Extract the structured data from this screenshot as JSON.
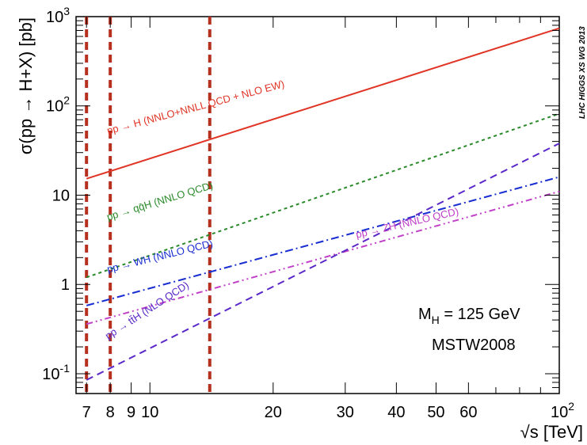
{
  "chart_data": {
    "type": "line",
    "x_scale": "log",
    "y_scale": "log",
    "xlim": [
      6.6,
      100
    ],
    "ylim": [
      0.06,
      1000
    ],
    "xlabel": "√s [TeV]",
    "ylabel": "σ(pp → H+X) [pb]",
    "x_ticks": [
      {
        "value": 7,
        "label": "7"
      },
      {
        "value": 8,
        "label": "8"
      },
      {
        "value": 9,
        "label": "9"
      },
      {
        "value": 10,
        "label": "10"
      },
      {
        "value": 20,
        "label": "20"
      },
      {
        "value": 30,
        "label": "30"
      },
      {
        "value": 40,
        "label": "40"
      },
      {
        "value": 50,
        "label": "50"
      },
      {
        "value": 60,
        "label": "60"
      },
      {
        "value": 100,
        "label": "10",
        "sup": "2"
      }
    ],
    "y_ticks": [
      {
        "value": 0.1,
        "label": "10",
        "sup": "-1"
      },
      {
        "value": 1,
        "label": "1"
      },
      {
        "value": 10,
        "label": "10"
      },
      {
        "value": 100,
        "label": "10",
        "sup": "2"
      },
      {
        "value": 1000,
        "label": "10",
        "sup": "3"
      }
    ],
    "vertical_lines": [
      7,
      8,
      14
    ],
    "vertical_line_color": "#b5301f",
    "series": [
      {
        "name": "pp → H (NNLO+NNLL QCD + NLO EW)",
        "color": "#e03527",
        "dash": "solid",
        "x": [
          7,
          100
        ],
        "y": [
          15.3,
          740
        ],
        "label_x": 7.9,
        "label_y": 48,
        "label_angle": -15
      },
      {
        "name": "pp → qq̄H (NNLO QCD)",
        "color": "#2a8a2a",
        "dash": "4,4",
        "x": [
          7,
          100
        ],
        "y": [
          1.2,
          82
        ],
        "label_x": 7.9,
        "label_y": 5.2,
        "label_angle": -17
      },
      {
        "name": "pp → WH (NNLO QCD)",
        "color": "#1a2fd1",
        "dash": "10,4,2,4",
        "x": [
          7,
          100
        ],
        "y": [
          0.58,
          16
        ],
        "label_x": 7.9,
        "label_y": 1.35,
        "label_angle": -14
      },
      {
        "name": "pp → ZH (NNLO QCD)",
        "color": "#c040c8",
        "dash": "8,4,2,4,2,4",
        "x": [
          7,
          100
        ],
        "y": [
          0.36,
          11
        ],
        "label_x": 32,
        "label_y": 3.3,
        "label_angle": -13
      },
      {
        "name": "pp → tt̄H (NLO QCD)",
        "color": "#5a28c8",
        "dash": "9,6",
        "x": [
          7,
          100
        ],
        "y": [
          0.085,
          38
        ],
        "label_x": 7.9,
        "label_y": 0.24,
        "label_angle": -33
      }
    ],
    "annotation": {
      "line1_main": "M",
      "line1_sub": "H",
      "line1_rest": " = 125 GeV",
      "line2": "MSTW2008"
    },
    "watermark": "LHC HIGGS XS WG 2013"
  }
}
